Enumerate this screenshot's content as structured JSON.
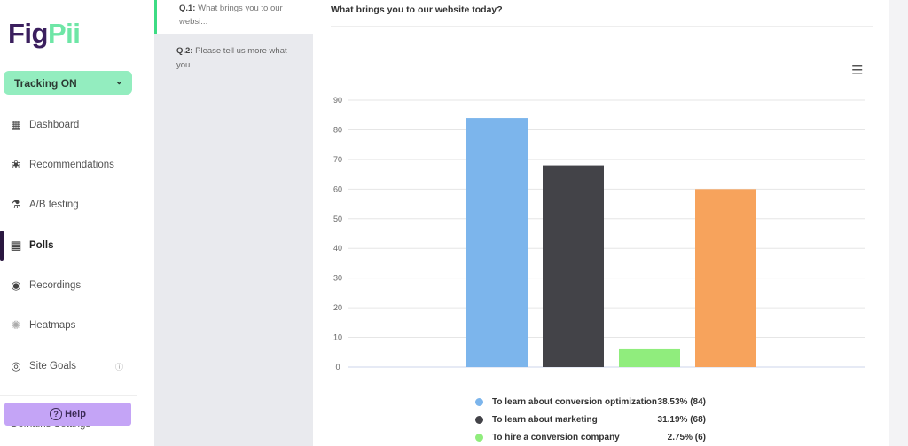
{
  "brand": {
    "part1": "Fig",
    "part2": "Pii"
  },
  "tracking": {
    "label": "Tracking ON"
  },
  "sidebar": {
    "items": [
      {
        "label": "Dashboard",
        "icon": "dashboard-icon"
      },
      {
        "label": "Recommendations",
        "icon": "brain-icon"
      },
      {
        "label": "A/B testing",
        "icon": "flask-icon"
      },
      {
        "label": "Polls",
        "icon": "poll-icon",
        "active": true
      },
      {
        "label": "Recordings",
        "icon": "record-icon"
      },
      {
        "label": "Heatmaps",
        "icon": "heatmap-icon"
      },
      {
        "label": "Site Goals",
        "icon": "target-icon"
      }
    ],
    "domains": "Domains Settings",
    "help": "Help"
  },
  "questions": [
    {
      "num": "Q.1:",
      "text": "What brings you to our websi..."
    },
    {
      "num": "Q.2:",
      "text": "Please tell us more what you..."
    }
  ],
  "chart_data": {
    "type": "bar",
    "title": "What brings you to our website today?",
    "categories": [
      "To learn about conversion optimization",
      "To learn about marketing",
      "To hire a conversion company",
      ""
    ],
    "values": [
      84,
      68,
      6,
      60
    ],
    "colors": [
      "#7cb5ec",
      "#434348",
      "#90ed7d",
      "#f7a35c"
    ],
    "ylim": [
      0,
      90
    ],
    "yticks": [
      "0",
      "10",
      "20",
      "30",
      "40",
      "50",
      "60",
      "70",
      "80",
      "90"
    ],
    "grid": true,
    "legend": [
      {
        "label": "To learn about conversion optimization",
        "value": "38.53% (84)",
        "color": "#7cb5ec"
      },
      {
        "label": "To learn about marketing",
        "value": "31.19% (68)",
        "color": "#434348"
      },
      {
        "label": "To hire a conversion company",
        "value": "2.75% (6)",
        "color": "#90ed7d"
      }
    ]
  }
}
